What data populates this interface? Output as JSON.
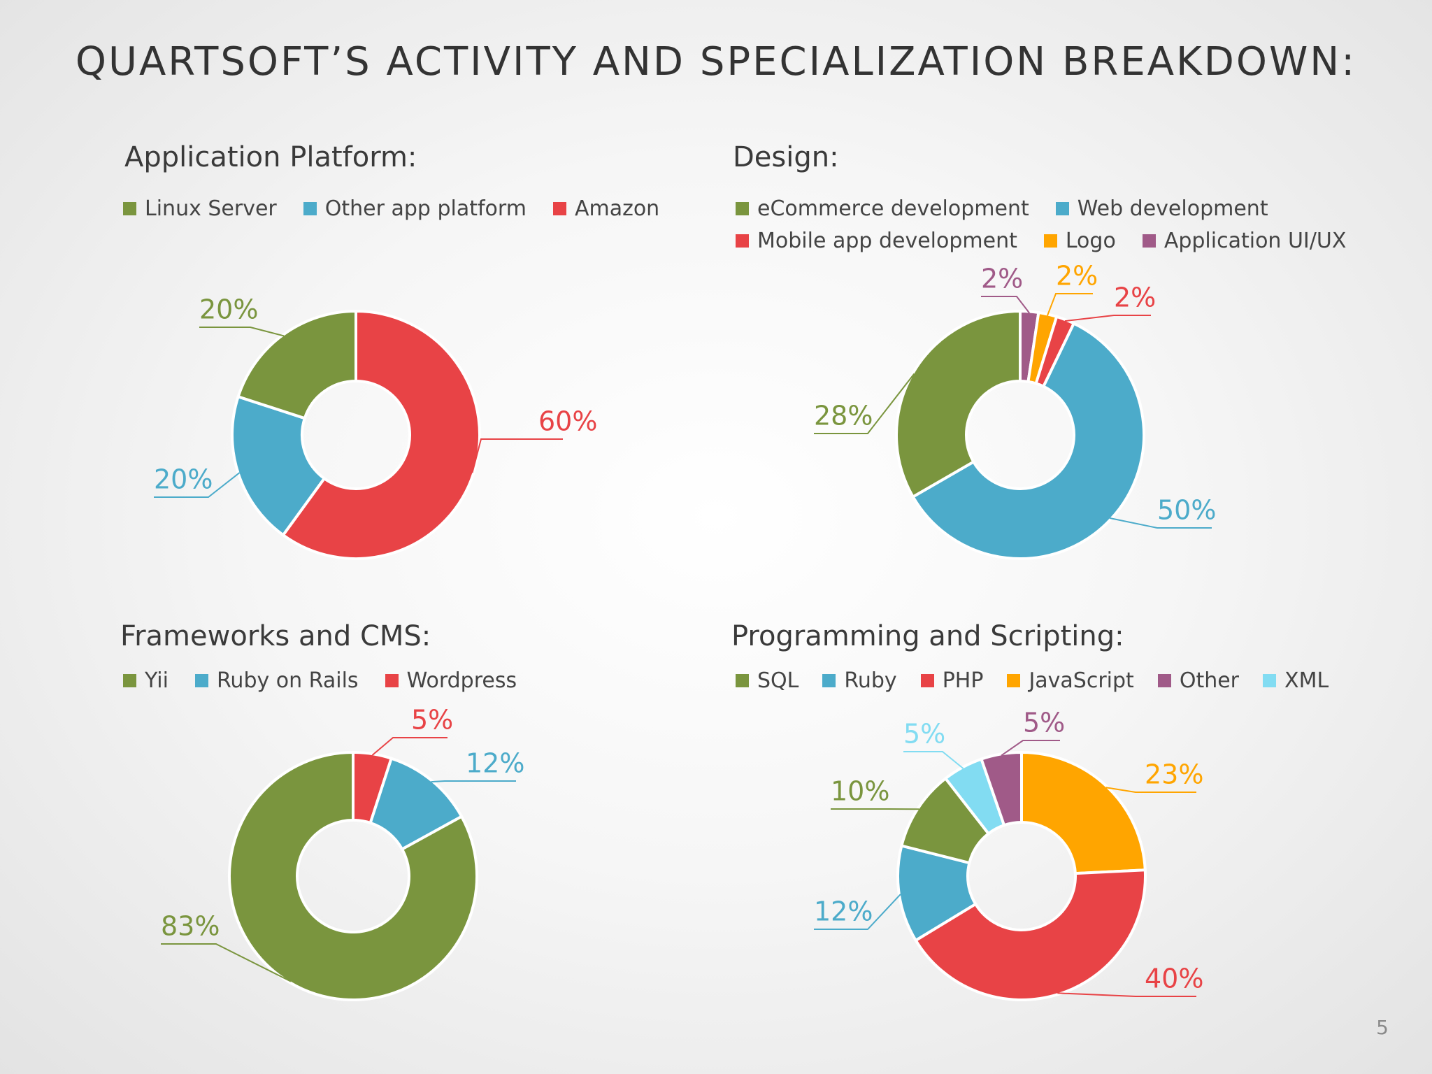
{
  "slide": {
    "title": "QUARTSOFT’S ACTIVITY AND SPECIALIZATION BREAKDOWN:",
    "page_number": "5"
  },
  "chart_data": [
    {
      "type": "pie",
      "title": "Application Platform:",
      "legend": [
        "Linux Server",
        "Other app platform",
        "Amazon"
      ],
      "slices": [
        {
          "label": "Amazon",
          "value": 60,
          "display": "60%",
          "color": "#e84346"
        },
        {
          "label": "Other app platform",
          "value": 20,
          "display": "20%",
          "color": "#4cabca"
        },
        {
          "label": "Linux Server",
          "value": 20,
          "display": "20%",
          "color": "#7a953e"
        }
      ]
    },
    {
      "type": "pie",
      "title": "Design:",
      "legend": [
        "eCommerce development",
        "Web development",
        "Mobile app development",
        "Logo",
        "Application UI/UX"
      ],
      "slices": [
        {
          "label": "Application UI/UX",
          "value": 2,
          "display": "2%",
          "color": "#a05a88"
        },
        {
          "label": "Logo",
          "value": 2,
          "display": "2%",
          "color": "#ffa500"
        },
        {
          "label": "Mobile app development",
          "value": 2,
          "display": "2%",
          "color": "#e84346"
        },
        {
          "label": "Web development",
          "value": 50,
          "display": "50%",
          "color": "#4cabca"
        },
        {
          "label": "eCommerce development",
          "value": 28,
          "display": "28%",
          "color": "#7a953e"
        }
      ]
    },
    {
      "type": "pie",
      "title": "Frameworks and CMS:",
      "legend": [
        "Yii",
        "Ruby on Rails",
        "Wordpress"
      ],
      "slices": [
        {
          "label": "Wordpress",
          "value": 5,
          "display": "5%",
          "color": "#e84346"
        },
        {
          "label": "Ruby on Rails",
          "value": 12,
          "display": "12%",
          "color": "#4cabca"
        },
        {
          "label": "Yii",
          "value": 83,
          "display": "83%",
          "color": "#7a953e"
        }
      ]
    },
    {
      "type": "pie",
      "title": "Programming and Scripting:",
      "legend": [
        "SQL",
        "Ruby",
        "PHP",
        "JavaScript",
        "Other",
        "XML"
      ],
      "slices": [
        {
          "label": "JavaScript",
          "value": 23,
          "display": "23%",
          "color": "#ffa500"
        },
        {
          "label": "PHP",
          "value": 40,
          "display": "40%",
          "color": "#e84346"
        },
        {
          "label": "Ruby",
          "value": 12,
          "display": "12%",
          "color": "#4cabca"
        },
        {
          "label": "SQL",
          "value": 10,
          "display": "10%",
          "color": "#7a953e"
        },
        {
          "label": "XML",
          "value": 5,
          "display": "5%",
          "color": "#82dcf2"
        },
        {
          "label": "Other",
          "value": 5,
          "display": "5%",
          "color": "#a05a88"
        }
      ]
    }
  ]
}
